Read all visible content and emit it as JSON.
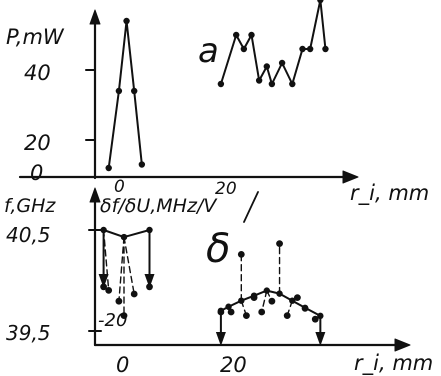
{
  "chart_data": [
    {
      "panel_label": "a",
      "type": "line",
      "ylabel": "P,mW",
      "xlabel": "",
      "y_ticks": [
        "40",
        "20",
        "0"
      ],
      "x_ticks": [
        "0",
        "20"
      ],
      "ylim": [
        0,
        50
      ],
      "series": [
        {
          "x": [
            -3,
            -1,
            0.5,
            2,
            3.5
          ],
          "y": [
            2,
            24,
            44,
            24,
            3
          ]
        },
        {
          "x": [
            19,
            22,
            23.5,
            25,
            26.5,
            28,
            29,
            31,
            33,
            35,
            36.5,
            38.5,
            39.5
          ],
          "y": [
            26,
            40,
            36,
            40,
            27,
            31,
            26,
            32,
            26,
            36,
            36,
            50,
            36
          ]
        }
      ]
    },
    {
      "panel_label": "δ",
      "type": "line",
      "ylabel": "f,GHz",
      "ylabel_right": "δf/δU,MHz/V",
      "xlabel": "r_i, mm",
      "y_ticks": [
        "40,5",
        "39,5"
      ],
      "y_ticks_right": [
        "-20"
      ],
      "x_ticks": [
        "0",
        "20"
      ],
      "frequency_series": [
        {
          "x": [
            -4,
            0,
            5
          ],
          "y": [
            40.5,
            40.43,
            40.5
          ]
        },
        {
          "x": [
            19,
            20.5,
            23,
            25.5,
            28,
            30.5,
            33,
            35.5,
            38.5
          ],
          "y": [
            39.7,
            39.74,
            39.8,
            39.85,
            39.9,
            39.87,
            39.8,
            39.73,
            39.65
          ]
        }
      ],
      "tuning_slope_points": [
        {
          "x": [
            -4,
            -3,
            -1,
            0,
            2,
            5
          ],
          "y": [
            -8,
            -9,
            -12,
            -16,
            -10,
            -8
          ]
        },
        {
          "x": [
            19,
            21,
            23,
            24,
            25.5,
            27,
            29,
            30.5,
            32,
            34,
            35.5,
            37.5
          ],
          "y": [
            -15,
            -15,
            1,
            -16,
            -11,
            -15,
            -12,
            4,
            -16,
            -11,
            -14,
            -17
          ]
        }
      ]
    }
  ],
  "labels": {
    "panel_a": "a",
    "panel_b": "δ",
    "ylabel_a": "P,mW",
    "ytick_a_40": "40",
    "ytick_a_20": "20",
    "ytick_a_0": "0",
    "xtick_0_top": "0",
    "xtick_20_top": "20",
    "xlabel_mid": "r_i, mm",
    "ylabel_f": "f,GHz",
    "ylabel_slope": "δf/δU,MHz/V",
    "ytick_405": "40,5",
    "ytick_395": "39,5",
    "ytick_m20": "-20",
    "xtick_0_bottom": "0",
    "xtick_20_bottom": "20",
    "xlabel_bottom": "r_i, mm"
  }
}
